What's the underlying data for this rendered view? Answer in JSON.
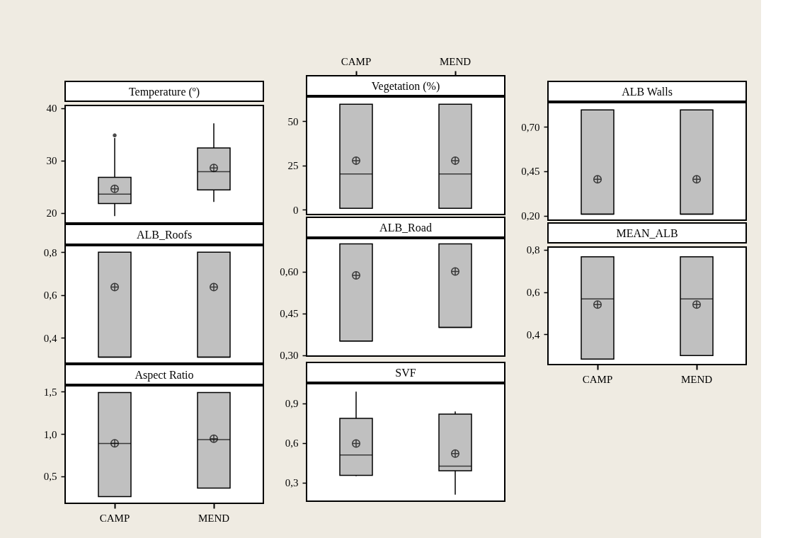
{
  "chart_data": [
    {
      "type": "box",
      "title": "Temperature (º)",
      "categories": [
        "CAMP",
        "MEND"
      ],
      "color": "#c0c0c0",
      "tick_labels": "y",
      "ylim": [
        18.1,
        40.5
      ],
      "yticks": [
        20,
        30,
        40
      ],
      "boxes": [
        {
          "low": 19.4,
          "q1": 21.8,
          "median": 23.6,
          "q3": 26.8,
          "high": 34.3,
          "mean": 24.6,
          "outliers": [
            34.8
          ]
        },
        {
          "low": 22.1,
          "q1": 24.4,
          "median": 27.9,
          "q3": 32.4,
          "high": 37.1,
          "mean": 28.6
        }
      ]
    },
    {
      "type": "box",
      "title": "Vegetation (%)",
      "categories": [
        "CAMP",
        "MEND"
      ],
      "color": "#c0c0c0",
      "ylim": [
        -2.7,
        63.6
      ],
      "yticks": [
        0,
        25,
        50
      ],
      "boxes": [
        {
          "low": 0.8,
          "q1": 0.8,
          "median": 20.2,
          "q3": 59.5,
          "high": 59.5,
          "mean": 27.7
        },
        {
          "low": 0.8,
          "q1": 0.8,
          "median": 20.2,
          "q3": 59.5,
          "high": 59.5,
          "mean": 27.7
        }
      ]
    },
    {
      "type": "box",
      "title": "ALB  Walls",
      "categories": [
        "CAMP",
        "MEND"
      ],
      "color": "#c0c0c0",
      "tick_labels": "y",
      "ylim": [
        0.176,
        0.835
      ],
      "yticks": [
        {
          "value": 0.2,
          "label": "0,20"
        },
        {
          "value": 0.45,
          "label": "0,45"
        },
        {
          "value": 0.7,
          "label": "0,70"
        }
      ],
      "boxes": [
        {
          "low": 0.21,
          "q1": 0.21,
          "median": 0.21,
          "q3": 0.794,
          "high": 0.794,
          "mean": 0.405
        },
        {
          "low": 0.21,
          "q1": 0.21,
          "median": 0.21,
          "q3": 0.794,
          "high": 0.794,
          "mean": 0.405
        }
      ]
    },
    {
      "type": "box",
      "title": "ALB_Roofs",
      "categories": [
        "CAMP",
        "MEND"
      ],
      "color": "#c0c0c0",
      "tick_labels": "y",
      "ylim": [
        0.281,
        0.831
      ],
      "yticks": [
        {
          "value": 0.4,
          "label": "0,4"
        },
        {
          "value": 0.6,
          "label": "0,6"
        },
        {
          "value": 0.8,
          "label": "0,8"
        }
      ],
      "boxes": [
        {
          "low": 0.309,
          "q1": 0.309,
          "median": 0.309,
          "q3": 0.8,
          "high": 0.8,
          "mean": 0.637
        },
        {
          "low": 0.309,
          "q1": 0.309,
          "median": 0.309,
          "q3": 0.8,
          "high": 0.8,
          "mean": 0.637
        }
      ]
    },
    {
      "type": "box",
      "title": "ALB_Road",
      "categories": [
        "CAMP",
        "MEND"
      ],
      "color": "#c0c0c0",
      "tick_labels": "y",
      "ylim": [
        0.297,
        0.718
      ],
      "yticks": [
        {
          "value": 0.3,
          "label": "0,30"
        },
        {
          "value": 0.45,
          "label": "0,45"
        },
        {
          "value": 0.6,
          "label": "0,60"
        }
      ],
      "boxes": [
        {
          "low": 0.351,
          "q1": 0.351,
          "median": 0.351,
          "q3": 0.699,
          "high": 0.699,
          "mean": 0.586
        },
        {
          "low": 0.4,
          "q1": 0.4,
          "median": 0.4,
          "q3": 0.699,
          "high": 0.699,
          "mean": 0.6
        }
      ]
    },
    {
      "type": "box",
      "title": "MEAN_ALB",
      "categories": [
        "CAMP",
        "MEND"
      ],
      "color": "#c0c0c0",
      "ylim": [
        0.257,
        0.813
      ],
      "yticks": [
        {
          "value": 0.4,
          "label": "0,4"
        },
        {
          "value": 0.6,
          "label": "0,6"
        },
        {
          "value": 0.8,
          "label": "0,8"
        }
      ],
      "boxes": [
        {
          "low": 0.283,
          "q1": 0.283,
          "median": 0.568,
          "q3": 0.767,
          "high": 0.767,
          "mean": 0.541
        },
        {
          "low": 0.3,
          "q1": 0.3,
          "median": 0.568,
          "q3": 0.767,
          "high": 0.767,
          "mean": 0.541
        }
      ]
    },
    {
      "type": "box",
      "title": "Aspect Ratio",
      "categories": [
        "CAMP",
        "MEND"
      ],
      "color": "#c0c0c0",
      "ylim": [
        0.18,
        1.57
      ],
      "yticks": [
        {
          "value": 0.5,
          "label": "0,5"
        },
        {
          "value": 1.0,
          "label": "1,0"
        },
        {
          "value": 1.5,
          "label": "1,5"
        }
      ],
      "boxes": [
        {
          "low": 0.26,
          "q1": 0.26,
          "median": 0.887,
          "q3": 1.49,
          "high": 1.49,
          "mean": 0.89
        },
        {
          "low": 0.36,
          "q1": 0.36,
          "median": 0.933,
          "q3": 1.49,
          "high": 1.49,
          "mean": 0.945
        }
      ]
    },
    {
      "type": "box",
      "title": "SVF",
      "categories": [
        "CAMP",
        "MEND"
      ],
      "color": "#c0c0c0",
      "tick_labels": "y",
      "ylim": [
        0.16,
        1.05
      ],
      "yticks": [
        {
          "value": 0.3,
          "label": "0,3"
        },
        {
          "value": 0.6,
          "label": "0,6"
        },
        {
          "value": 0.9,
          "label": "0,9"
        }
      ],
      "boxes": [
        {
          "low": 0.35,
          "q1": 0.356,
          "median": 0.51,
          "q3": 0.787,
          "high": 0.99,
          "mean": 0.597
        },
        {
          "low": 0.21,
          "q1": 0.39,
          "median": 0.425,
          "q3": 0.82,
          "high": 0.84,
          "mean": 0.52
        }
      ]
    }
  ]
}
